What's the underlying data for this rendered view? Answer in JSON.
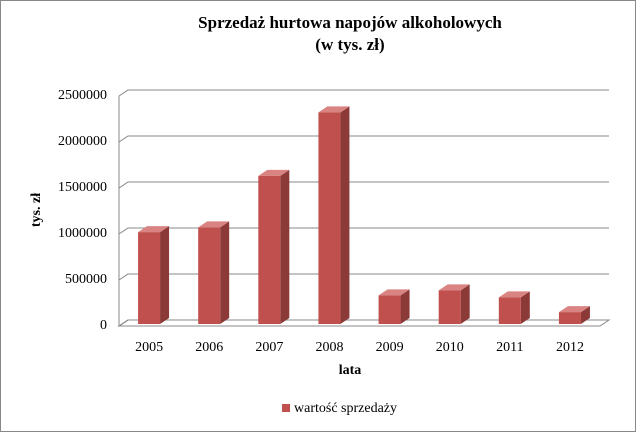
{
  "chart_data": {
    "type": "bar3d",
    "title": "Sprzedaż hurtowa napojów alkoholowych",
    "subtitle": "(w tys. zł)",
    "x_label": "lata",
    "y_label": "tys. zł",
    "categories": [
      "2005",
      "2006",
      "2007",
      "2008",
      "2009",
      "2010",
      "2011",
      "2012"
    ],
    "series": [
      {
        "name": "wartość sprzedaży",
        "color": "#c0504d",
        "values": [
          998000,
          1050000,
          1610000,
          2300000,
          311000,
          365000,
          290000,
          129000
        ]
      }
    ],
    "ylim": [
      0,
      2500000
    ],
    "yticks": [
      0,
      500000,
      1000000,
      1500000,
      2000000,
      2500000
    ],
    "grid": true,
    "legend": "bottom"
  }
}
